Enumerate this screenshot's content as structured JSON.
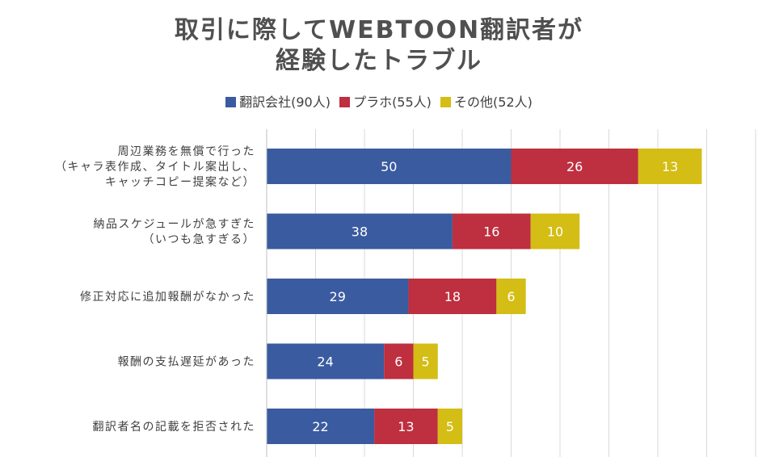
{
  "chart_data": {
    "type": "bar",
    "orientation": "horizontal",
    "stacked": true,
    "title_lines": [
      "取引に際してWEBTOON翻訳者が",
      "経験したトラブル"
    ],
    "categories": [
      {
        "lines": [
          "周辺業務を無償で行った",
          "（キャラ表作成、タイトル案出し、",
          "キャッチコピー提案など）"
        ]
      },
      {
        "lines": [
          "納品スケジュールが急すぎた",
          "（いつも急すぎる）"
        ]
      },
      {
        "lines": [
          "修正対応に追加報酬がなかった"
        ]
      },
      {
        "lines": [
          "報酬の支払遅延があった"
        ]
      },
      {
        "lines": [
          "翻訳者名の記載を拒否された"
        ]
      }
    ],
    "series": [
      {
        "name": "翻訳会社(90人)",
        "color": "#3a5ba0",
        "values": [
          50,
          38,
          29,
          24,
          22
        ]
      },
      {
        "name": "プラホ(55人)",
        "color": "#be2f3f",
        "values": [
          26,
          16,
          18,
          6,
          13
        ]
      },
      {
        "name": "その他(52人)",
        "color": "#d4bd14",
        "values": [
          13,
          10,
          6,
          5,
          5
        ]
      }
    ],
    "xlim": [
      0,
      100
    ],
    "grid": true,
    "legend_position": "top"
  }
}
